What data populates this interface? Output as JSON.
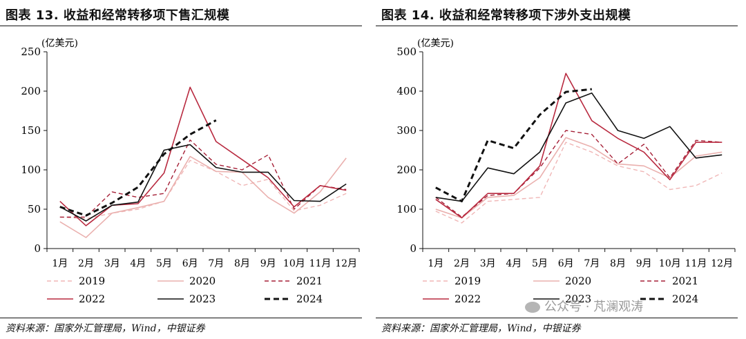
{
  "charts": [
    {
      "title": "图表 13. 收益和经常转移项下售汇规模",
      "source": "资料来源：国家外汇管理局，Wind，中银证券"
    },
    {
      "title": "图表 14. 收益和经常转移项下涉外支出规模",
      "source": "资料来源：国家外汇管理局，Wind，中银证券"
    }
  ],
  "watermark": "公众号 · 芃澜观涛",
  "chart_data": [
    {
      "type": "line",
      "title": "图表 13. 收益和经常转移项下售汇规模",
      "ylabel": "(亿美元)",
      "ylim": [
        0,
        250
      ],
      "yticks": [
        0,
        50,
        100,
        150,
        200,
        250
      ],
      "categories": [
        "1月",
        "2月",
        "3月",
        "4月",
        "5月",
        "6月",
        "7月",
        "8月",
        "9月",
        "10月",
        "11月",
        "12月"
      ],
      "legend_position": "bottom",
      "series": [
        {
          "name": "2019",
          "color": "#f0b6b6",
          "dash": "dashed",
          "values": [
            40,
            38,
            45,
            50,
            60,
            112,
            98,
            80,
            88,
            48,
            55,
            70
          ]
        },
        {
          "name": "2020",
          "color": "#eab0ae",
          "dash": "solid",
          "values": [
            34,
            14,
            45,
            52,
            60,
            117,
            98,
            97,
            65,
            45,
            72,
            115
          ]
        },
        {
          "name": "2021",
          "color": "#a51f36",
          "dash": "dashed",
          "values": [
            40,
            40,
            72,
            65,
            70,
            138,
            107,
            100,
            119,
            50,
            80,
            75
          ]
        },
        {
          "name": "2022",
          "color": "#b8293f",
          "dash": "solid",
          "values": [
            60,
            29,
            55,
            57,
            96,
            205,
            136,
            113,
            90,
            53,
            80,
            74
          ]
        },
        {
          "name": "2023",
          "color": "#111111",
          "dash": "solid",
          "values": [
            53,
            35,
            55,
            59,
            125,
            132,
            103,
            97,
            97,
            61,
            60,
            82
          ]
        },
        {
          "name": "2024",
          "color": "#111111",
          "dash": "bolddash",
          "values": [
            53,
            42,
            58,
            78,
            120,
            145,
            163,
            null,
            null,
            null,
            null,
            null
          ]
        }
      ]
    },
    {
      "type": "line",
      "title": "图表 14. 收益和经常转移项下涉外支出规模",
      "ylabel": "(亿美元)",
      "ylim": [
        0,
        500
      ],
      "yticks": [
        0,
        100,
        200,
        300,
        400,
        500
      ],
      "categories": [
        "1月",
        "2月",
        "3月",
        "4月",
        "5月",
        "6月",
        "7月",
        "8月",
        "9月",
        "10月",
        "11月",
        "12月"
      ],
      "legend_position": "bottom",
      "series": [
        {
          "name": "2019",
          "color": "#f0b6b6",
          "dash": "dashed",
          "values": [
            95,
            65,
            120,
            125,
            130,
            270,
            245,
            210,
            195,
            150,
            160,
            192
          ]
        },
        {
          "name": "2020",
          "color": "#eab0ae",
          "dash": "solid",
          "values": [
            100,
            78,
            130,
            135,
            180,
            282,
            258,
            215,
            210,
            180,
            235,
            245
          ]
        },
        {
          "name": "2021",
          "color": "#a51f36",
          "dash": "dashed",
          "values": [
            130,
            80,
            135,
            140,
            205,
            300,
            290,
            215,
            265,
            180,
            275,
            270
          ]
        },
        {
          "name": "2022",
          "color": "#b8293f",
          "dash": "solid",
          "values": [
            125,
            78,
            140,
            140,
            210,
            445,
            325,
            280,
            245,
            175,
            270,
            270
          ]
        },
        {
          "name": "2023",
          "color": "#111111",
          "dash": "solid",
          "values": [
            130,
            120,
            205,
            190,
            245,
            370,
            395,
            300,
            280,
            310,
            230,
            238
          ]
        },
        {
          "name": "2024",
          "color": "#111111",
          "dash": "bolddash",
          "values": [
            155,
            120,
            275,
            255,
            340,
            398,
            405,
            null,
            null,
            null,
            null,
            null
          ]
        }
      ]
    }
  ]
}
